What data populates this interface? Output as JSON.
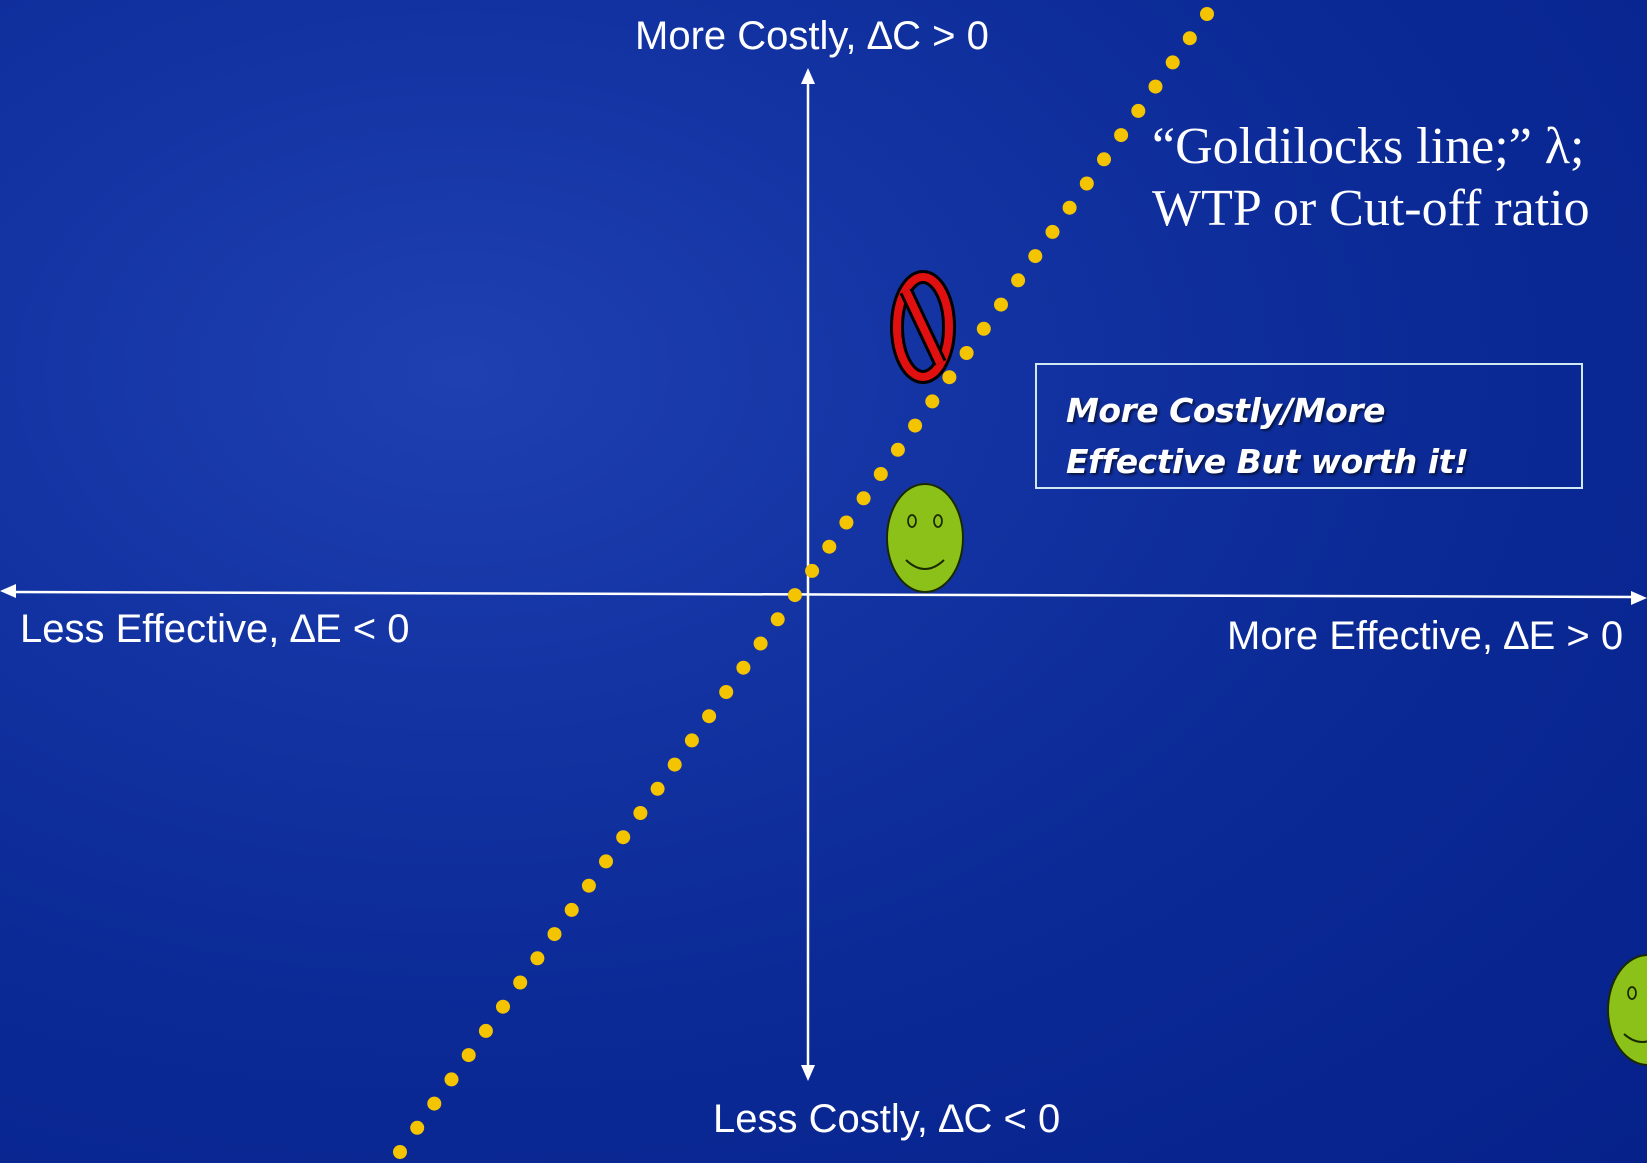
{
  "axes": {
    "top_label": "More Costly, ∆C > 0",
    "bottom_label": "Less Costly, ∆C < 0",
    "left_label": "Less Effective, ∆E < 0",
    "right_label": "More Effective, ∆E > 0"
  },
  "threshold_line": {
    "label_line1": "“Goldilocks line;” λ;",
    "label_line2": "WTP or Cut-off ratio",
    "color": "#F5C400",
    "style": "dotted"
  },
  "callout": {
    "line1": "More Costly/More",
    "line2": "Effective But worth it!"
  },
  "markers": [
    {
      "name": "no-symbol-icon",
      "meaning": "above threshold line",
      "colors": {
        "ring": "#E01010",
        "outline": "#000000"
      }
    },
    {
      "name": "smiley-face-icon",
      "meaning": "below threshold line",
      "colors": {
        "fill": "#8CC11A",
        "outline": "#1a2a00"
      }
    },
    {
      "name": "smiley-face-icon-partial",
      "meaning": "far right, below line",
      "colors": {
        "fill": "#8CC11A",
        "outline": "#1a2a00"
      }
    }
  ],
  "colors": {
    "background": "#0B2A96",
    "axis": "#FFFFFF",
    "callout_border": "#CFE8F2"
  }
}
